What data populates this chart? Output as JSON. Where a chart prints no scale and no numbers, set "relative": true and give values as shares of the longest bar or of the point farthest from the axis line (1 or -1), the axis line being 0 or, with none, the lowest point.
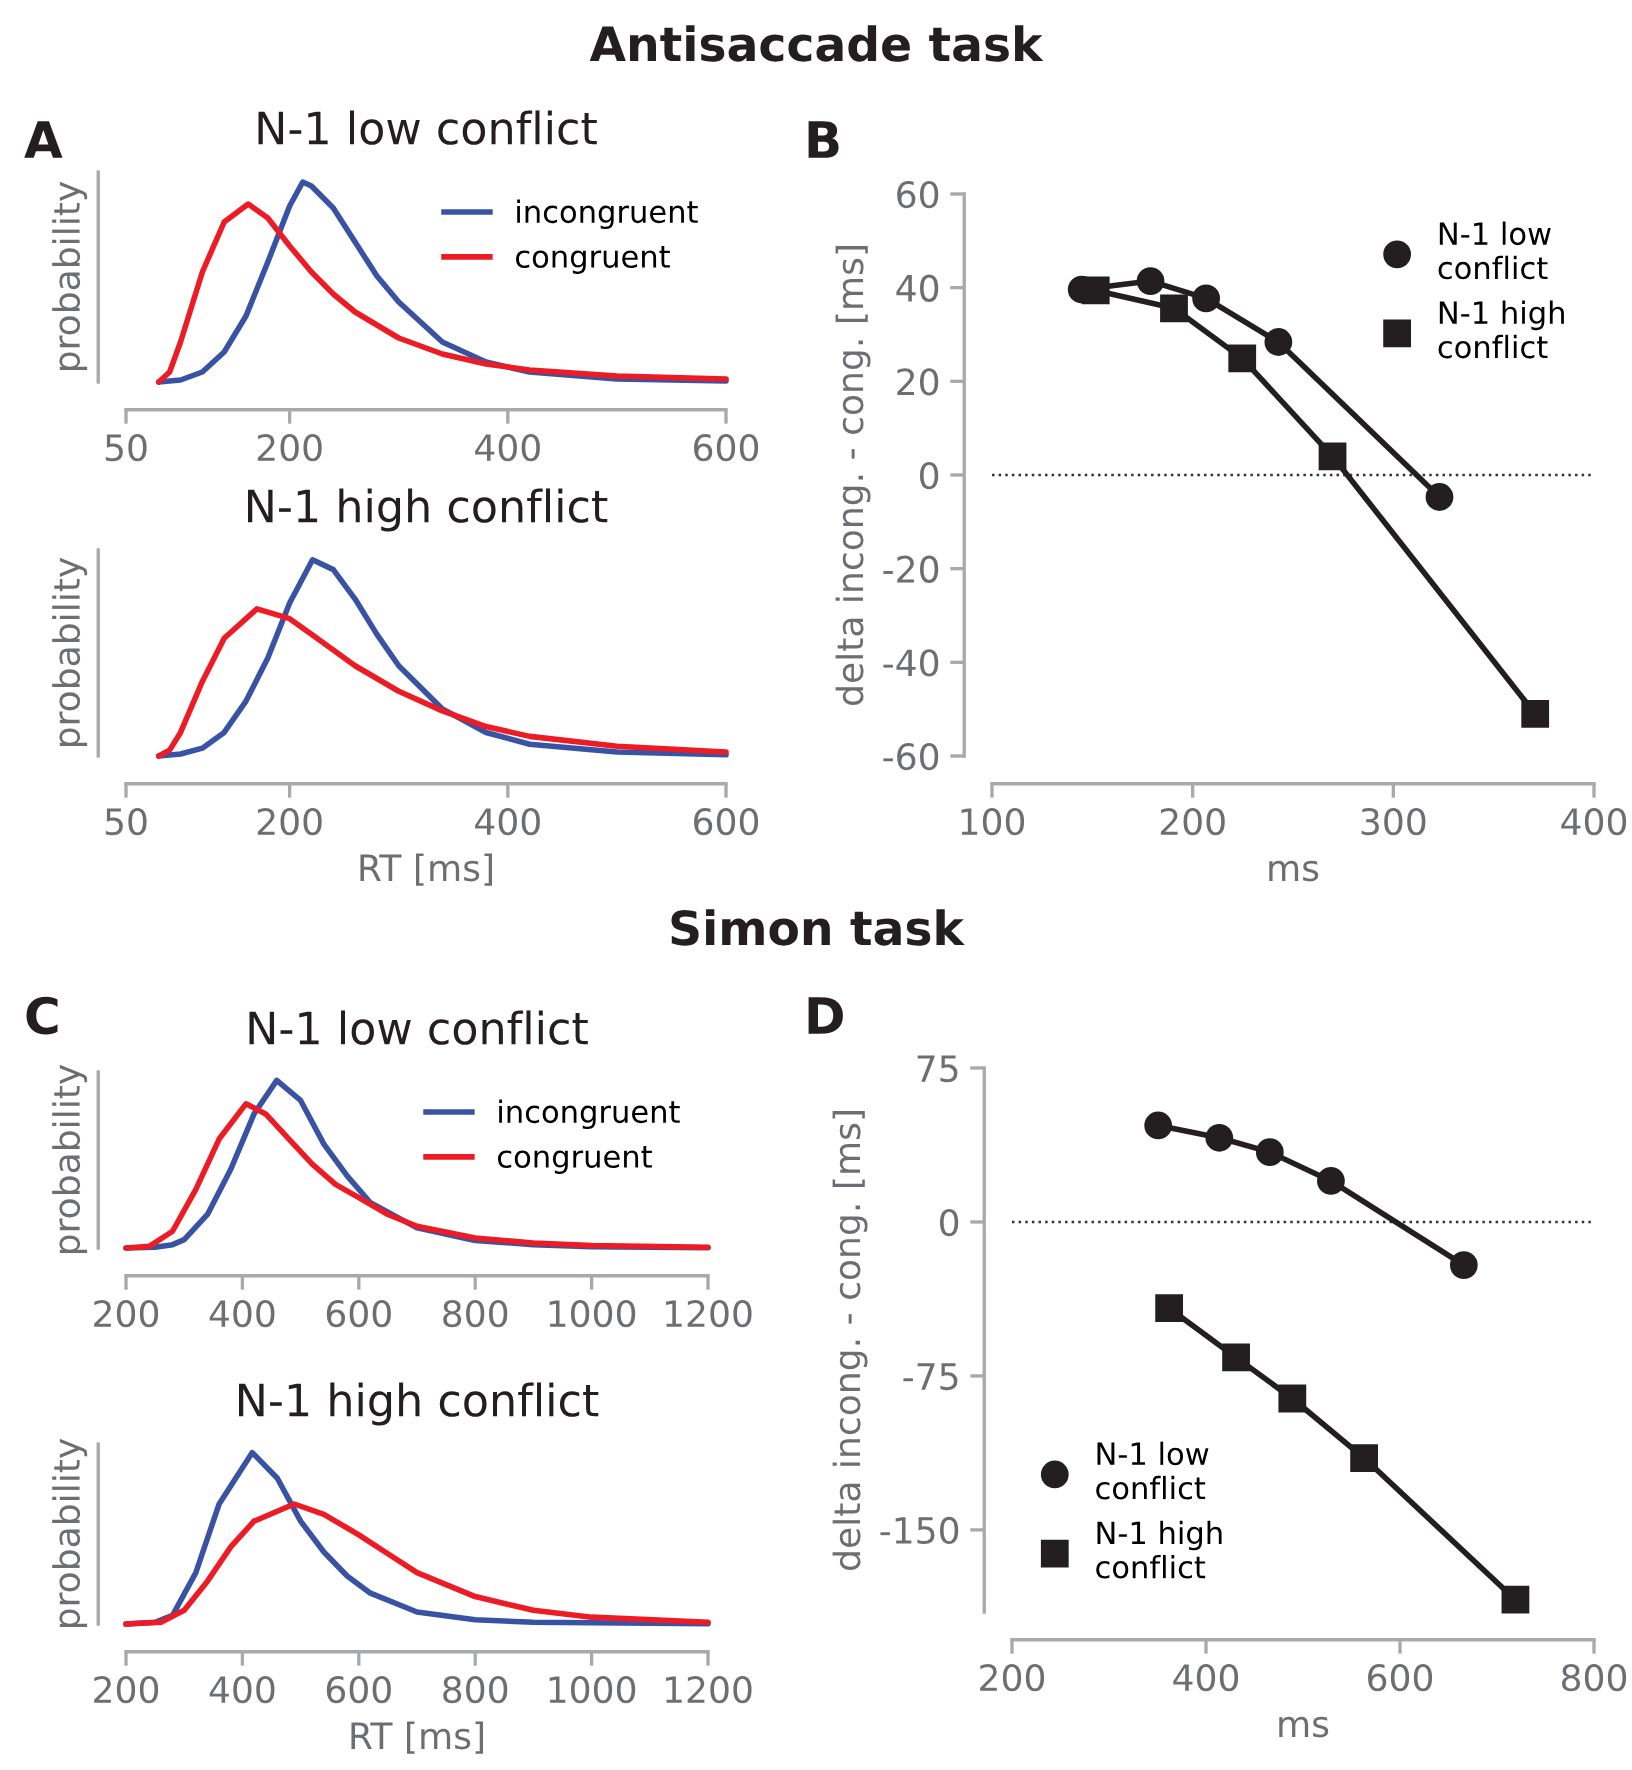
{
  "chart_data": [
    {
      "type": "line",
      "title": "N-1 low conflict",
      "ylabel": "probability",
      "relative": true,
      "annotations": [
        "A",
        "Antisaccade task"
      ],
      "xlim": [
        50,
        600
      ],
      "xticks": [
        50,
        200,
        400,
        600
      ],
      "legend": "top right",
      "grid": false,
      "series": [
        {
          "name": "incongruent",
          "color": "#3953a4",
          "x": [
            80,
            100,
            120,
            140,
            160,
            180,
            200,
            212,
            220,
            240,
            260,
            280,
            300,
            340,
            380,
            420,
            500,
            600
          ],
          "values": [
            0,
            0.01,
            0.05,
            0.15,
            0.33,
            0.6,
            0.88,
            1.0,
            0.98,
            0.87,
            0.7,
            0.53,
            0.4,
            0.2,
            0.1,
            0.05,
            0.015,
            0.005
          ]
        },
        {
          "name": "congruent",
          "color": "#ed1c24",
          "x": [
            80,
            90,
            100,
            120,
            140,
            162,
            180,
            200,
            220,
            240,
            260,
            300,
            340,
            380,
            420,
            500,
            600
          ],
          "values": [
            0,
            0.05,
            0.2,
            0.55,
            0.8,
            0.89,
            0.82,
            0.68,
            0.55,
            0.44,
            0.35,
            0.22,
            0.14,
            0.09,
            0.06,
            0.03,
            0.015
          ]
        }
      ]
    },
    {
      "type": "line",
      "title": "N-1 high conflict",
      "ylabel": "probability",
      "xlabel": "RT [ms]",
      "relative": true,
      "xlim": [
        50,
        600
      ],
      "xticks": [
        50,
        200,
        400,
        600
      ],
      "grid": false,
      "series": [
        {
          "color": "#3953a4",
          "x": [
            80,
            100,
            120,
            140,
            160,
            180,
            200,
            221,
            240,
            260,
            280,
            300,
            340,
            380,
            420,
            500,
            600
          ],
          "values": [
            0,
            0.01,
            0.04,
            0.12,
            0.28,
            0.5,
            0.78,
            1.0,
            0.95,
            0.8,
            0.62,
            0.46,
            0.24,
            0.12,
            0.06,
            0.02,
            0.006
          ]
        },
        {
          "color": "#ed1c24",
          "x": [
            80,
            90,
            100,
            120,
            140,
            170,
            200,
            220,
            240,
            260,
            300,
            340,
            380,
            420,
            500,
            600
          ],
          "values": [
            0,
            0.03,
            0.12,
            0.38,
            0.6,
            0.75,
            0.7,
            0.62,
            0.54,
            0.46,
            0.33,
            0.23,
            0.15,
            0.1,
            0.05,
            0.02
          ]
        }
      ]
    },
    {
      "type": "line",
      "xlabel": "ms",
      "ylabel": "delta incong. - cong. [ms]",
      "annotations": [
        "B"
      ],
      "xlim": [
        100,
        400
      ],
      "xticks": [
        100,
        200,
        300,
        400
      ],
      "ylim": [
        -60,
        60
      ],
      "yticks": [
        -60,
        -40,
        -20,
        0,
        20,
        40,
        60
      ],
      "legend": "top right",
      "grid": false,
      "ref_lines": [
        {
          "axis": "y",
          "value": 0,
          "line_style": "dotted",
          "color": "#333333"
        }
      ],
      "series": [
        {
          "name": "N-1 low\nconflict",
          "color": "#231f20",
          "marker": "circle",
          "x": [
            144.7,
            179,
            206.7,
            242.7,
            323
          ],
          "values": [
            39.6,
            41.4,
            37.7,
            28.4,
            -4.7
          ]
        },
        {
          "name": "N-1 high\nconflict",
          "color": "#231f20",
          "marker": "square",
          "x": [
            151.7,
            190.7,
            224.7,
            269.7,
            370.7
          ],
          "values": [
            39.4,
            35.6,
            24.9,
            4,
            -51
          ]
        }
      ]
    },
    {
      "type": "line",
      "title": "N-1 low conflict",
      "ylabel": "probability",
      "relative": true,
      "annotations": [
        "C",
        "Simon task"
      ],
      "xlim": [
        200,
        1200
      ],
      "xticks": [
        200,
        400,
        600,
        800,
        1000,
        1200
      ],
      "legend": "top right",
      "grid": false,
      "series": [
        {
          "name": "incongruent",
          "color": "#3953a4",
          "x": [
            200,
            250,
            280,
            300,
            340,
            380,
            420,
            459,
            500,
            540,
            580,
            620,
            700,
            800,
            900,
            1000,
            1200
          ],
          "values": [
            0,
            0.005,
            0.02,
            0.05,
            0.2,
            0.47,
            0.8,
            1.0,
            0.88,
            0.62,
            0.43,
            0.27,
            0.12,
            0.045,
            0.02,
            0.008,
            0.002
          ]
        },
        {
          "name": "congruent",
          "color": "#ed1c24",
          "x": [
            200,
            240,
            280,
            320,
            360,
            406,
            440,
            480,
            520,
            560,
            600,
            650,
            700,
            800,
            900,
            1000,
            1200
          ],
          "values": [
            0,
            0.01,
            0.1,
            0.35,
            0.65,
            0.86,
            0.8,
            0.65,
            0.5,
            0.38,
            0.3,
            0.2,
            0.13,
            0.06,
            0.03,
            0.015,
            0.005
          ]
        }
      ]
    },
    {
      "type": "line",
      "title": "N-1 high conflict",
      "ylabel": "probability",
      "xlabel": "RT [ms]",
      "relative": true,
      "xlim": [
        200,
        1200
      ],
      "xticks": [
        200,
        400,
        600,
        800,
        1000,
        1200
      ],
      "grid": false,
      "series": [
        {
          "color": "#3953a4",
          "x": [
            200,
            250,
            280,
            320,
            360,
            417,
            460,
            500,
            540,
            580,
            620,
            700,
            800,
            900,
            1200
          ],
          "values": [
            0,
            0.01,
            0.05,
            0.3,
            0.7,
            1.0,
            0.85,
            0.6,
            0.42,
            0.28,
            0.18,
            0.07,
            0.025,
            0.01,
            0.002
          ]
        },
        {
          "color": "#ed1c24",
          "x": [
            200,
            260,
            300,
            340,
            380,
            420,
            489,
            540,
            600,
            650,
            700,
            800,
            900,
            1000,
            1200
          ],
          "values": [
            0,
            0.01,
            0.08,
            0.25,
            0.45,
            0.6,
            0.7,
            0.64,
            0.52,
            0.41,
            0.3,
            0.16,
            0.08,
            0.04,
            0.01
          ]
        }
      ]
    },
    {
      "type": "line",
      "xlabel": "ms",
      "ylabel": "delta incong. - cong. [ms]",
      "annotations": [
        "D"
      ],
      "xlim": [
        200,
        800
      ],
      "xticks": [
        200,
        400,
        600,
        800
      ],
      "ylim": [
        -190,
        75
      ],
      "yticks": [
        -150,
        -75,
        0,
        75
      ],
      "legend": "bottom left",
      "grid": false,
      "ref_lines": [
        {
          "axis": "y",
          "value": 0,
          "line_style": "dotted",
          "color": "#333333"
        }
      ],
      "series": [
        {
          "name": "N-1 low\nconflict",
          "color": "#231f20",
          "marker": "circle",
          "x": [
            350.7,
            413.7,
            465.8,
            528.8,
            665.8
          ],
          "values": [
            47,
            41,
            34,
            20,
            -21
          ]
        },
        {
          "name": "N-1 high\nconflict",
          "color": "#231f20",
          "marker": "square",
          "x": [
            362,
            431,
            489,
            563,
            719
          ],
          "values": [
            -42,
            -66,
            -86,
            -115,
            -184
          ]
        }
      ]
    }
  ]
}
